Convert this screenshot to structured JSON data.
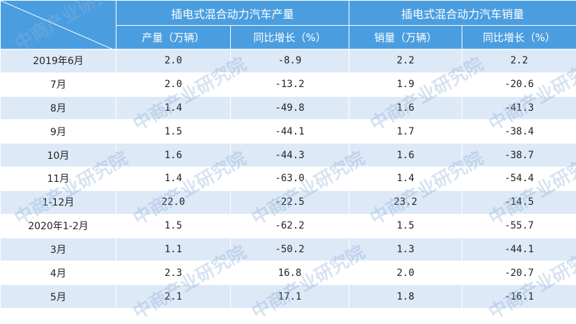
{
  "table": {
    "group_production": "插电式混合动力汽车产量",
    "group_sales": "插电式混合动力汽车销量",
    "columns": [
      "产量（万辆）",
      "同比增长（%）",
      "销量（万辆）",
      "同比增长（%）"
    ],
    "rows": [
      {
        "period": "2019年6月",
        "prod": "2.0",
        "prod_yoy": "-8.9",
        "sales": "2.2",
        "sales_yoy": "2.2"
      },
      {
        "period": "7月",
        "prod": "2.0",
        "prod_yoy": "-13.2",
        "sales": "1.9",
        "sales_yoy": "-20.6"
      },
      {
        "period": "8月",
        "prod": "1.4",
        "prod_yoy": "-49.8",
        "sales": "1.6",
        "sales_yoy": "-41.3"
      },
      {
        "period": "9月",
        "prod": "1.5",
        "prod_yoy": "-44.1",
        "sales": "1.7",
        "sales_yoy": "-38.4"
      },
      {
        "period": "10月",
        "prod": "1.6",
        "prod_yoy": "-44.3",
        "sales": "1.6",
        "sales_yoy": "-38.7"
      },
      {
        "period": "11月",
        "prod": "1.4",
        "prod_yoy": "-63.0",
        "sales": "1.4",
        "sales_yoy": "-54.4"
      },
      {
        "period": "1-12月",
        "prod": "22.0",
        "prod_yoy": "-22.5",
        "sales": "23.2",
        "sales_yoy": "-14.5"
      },
      {
        "period": "2020年1-2月",
        "prod": "1.5",
        "prod_yoy": "-62.2",
        "sales": "1.5",
        "sales_yoy": "-55.7"
      },
      {
        "period": "3月",
        "prod": "1.1",
        "prod_yoy": "-50.2",
        "sales": "1.3",
        "sales_yoy": "-44.1"
      },
      {
        "period": "4月",
        "prod": "2.3",
        "prod_yoy": "16.8",
        "sales": "2.0",
        "sales_yoy": "-20.7"
      },
      {
        "period": "5月",
        "prod": "2.1",
        "prod_yoy": "17.1",
        "sales": "1.8",
        "sales_yoy": "-16.1"
      }
    ]
  },
  "watermark": "中商产业研究院",
  "colors": {
    "header": "#4a9ee0",
    "stripe": "#dde9f7"
  }
}
